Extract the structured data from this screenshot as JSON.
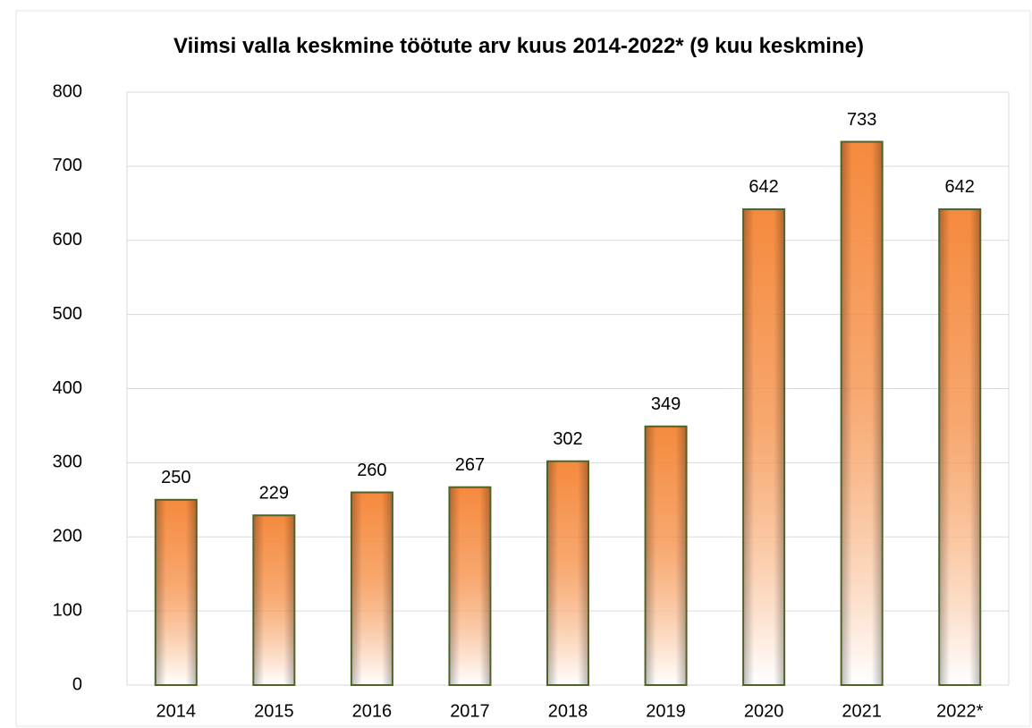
{
  "chart_data": {
    "type": "bar",
    "title": "Viimsi valla keskmine töötute arv kuus 2014-2022* (9 kuu keskmine)",
    "categories": [
      "2014",
      "2015",
      "2016",
      "2017",
      "2018",
      "2019",
      "2020",
      "2021",
      "2022*"
    ],
    "values": [
      250,
      229,
      260,
      267,
      302,
      349,
      642,
      733,
      642
    ],
    "color": "#f58a3e",
    "edgecolor": "#4f6228",
    "ylim": [
      0,
      800
    ],
    "yticks": [
      0,
      100,
      200,
      300,
      400,
      500,
      600,
      700,
      800
    ],
    "grid": true
  }
}
